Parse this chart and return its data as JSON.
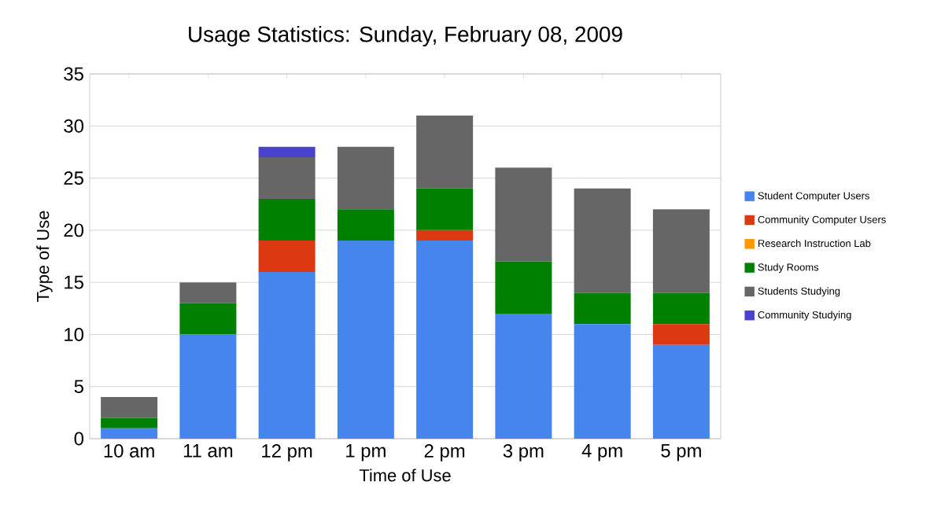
{
  "chart_data": {
    "type": "bar",
    "stacked": true,
    "title": "Usage Statistics: Sunday, February 08, 2009",
    "xlabel": "Time of Use",
    "ylabel": "Type of Use",
    "categories": [
      "10 am",
      "11 am",
      "12 pm",
      "1 pm",
      "2 pm",
      "3 pm",
      "4 pm",
      "5 pm"
    ],
    "series": [
      {
        "name": "Student Computer Users",
        "color": "#4684ee",
        "values": [
          1,
          10,
          16,
          19,
          19,
          12,
          11,
          9
        ]
      },
      {
        "name": "Community Computer Users",
        "color": "#dc3912",
        "values": [
          0,
          0,
          3,
          0,
          1,
          0,
          0,
          2
        ]
      },
      {
        "name": "Research Instruction Lab",
        "color": "#ff9900",
        "values": [
          0,
          0,
          0,
          0,
          0,
          0,
          0,
          0
        ]
      },
      {
        "name": "Study Rooms",
        "color": "#008000",
        "values": [
          1,
          3,
          4,
          3,
          4,
          5,
          3,
          3
        ]
      },
      {
        "name": "Students Studying",
        "color": "#666666",
        "values": [
          2,
          2,
          4,
          6,
          7,
          9,
          10,
          8
        ]
      },
      {
        "name": "Community Studying",
        "color": "#4942cc",
        "values": [
          0,
          0,
          1,
          0,
          0,
          0,
          0,
          0
        ]
      }
    ],
    "ylim": [
      0,
      35
    ],
    "yticks": [
      0,
      5,
      10,
      15,
      20,
      25,
      30,
      35
    ],
    "grid": "y",
    "legend": "right"
  }
}
